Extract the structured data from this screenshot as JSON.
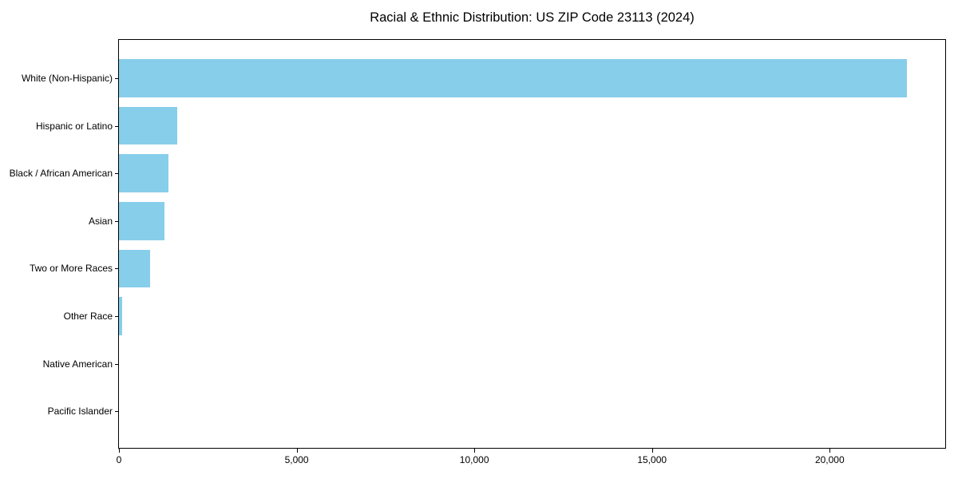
{
  "figure": {
    "background": "#ffffff",
    "text_color": "#000000"
  },
  "chart_data": {
    "type": "bar",
    "orientation": "horizontal",
    "title": "Racial & Ethnic Distribution: US ZIP Code 23113 (2024)",
    "xlabel": "",
    "ylabel": "",
    "categories": [
      "White (Non-Hispanic)",
      "Hispanic or Latino",
      "Black / African American",
      "Asian",
      "Two or More Races",
      "Other Race",
      "Native American",
      "Pacific Islander"
    ],
    "values": [
      22170,
      1630,
      1400,
      1280,
      875,
      100,
      0,
      0
    ],
    "bar_color": "#87CEEB",
    "xlim": [
      0,
      23250
    ],
    "xticks": {
      "values": [
        0,
        5000,
        10000,
        15000,
        20000
      ],
      "labels": [
        "0",
        "5,000",
        "10,000",
        "15,000",
        "20,000"
      ]
    },
    "grid": false,
    "legend": "none",
    "spine_color": "#000000"
  }
}
